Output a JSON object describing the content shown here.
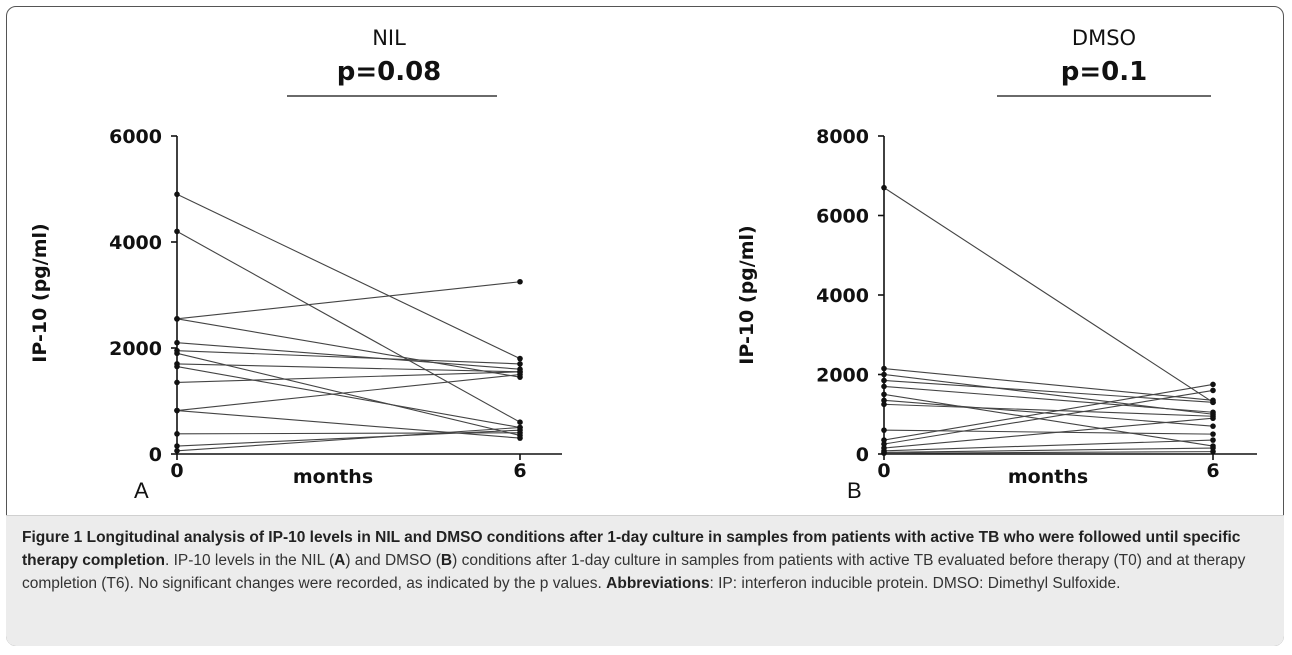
{
  "chart_data": [
    {
      "panel": "A",
      "type": "line",
      "title": "NIL",
      "subtitle": "p=0.08",
      "xlabel": "months",
      "ylabel": "IP-10 (pg/ml)",
      "x": [
        0,
        6
      ],
      "x_ticks": [
        "0",
        "6"
      ],
      "y_ticks": [
        "0",
        "2000",
        "4000",
        "6000"
      ],
      "ylim": [
        0,
        6000
      ],
      "series": [
        {
          "values": [
            4900,
            1800
          ]
        },
        {
          "values": [
            4200,
            600
          ]
        },
        {
          "values": [
            2550,
            3250
          ]
        },
        {
          "values": [
            2550,
            1450
          ]
        },
        {
          "values": [
            2100,
            1600
          ]
        },
        {
          "values": [
            1950,
            1700
          ]
        },
        {
          "values": [
            1900,
            350
          ]
        },
        {
          "values": [
            1700,
            1550
          ]
        },
        {
          "values": [
            1650,
            500
          ]
        },
        {
          "values": [
            1350,
            1550
          ]
        },
        {
          "values": [
            820,
            1500
          ]
        },
        {
          "values": [
            820,
            300
          ]
        },
        {
          "values": [
            380,
            400
          ]
        },
        {
          "values": [
            150,
            450
          ]
        },
        {
          "values": [
            60,
            500
          ]
        }
      ]
    },
    {
      "panel": "B",
      "type": "line",
      "title": "DMSO",
      "subtitle": "p=0.1",
      "xlabel": "months",
      "ylabel": "IP-10 (pg/ml)",
      "x": [
        0,
        6
      ],
      "x_ticks": [
        "0",
        "6"
      ],
      "y_ticks": [
        "0",
        "2000",
        "4000",
        "6000",
        "8000"
      ],
      "ylim": [
        0,
        8000
      ],
      "series": [
        {
          "values": [
            6700,
            1300
          ]
        },
        {
          "values": [
            2150,
            1350
          ]
        },
        {
          "values": [
            2000,
            1000
          ]
        },
        {
          "values": [
            1850,
            1300
          ]
        },
        {
          "values": [
            1700,
            1050
          ]
        },
        {
          "values": [
            1500,
            200
          ]
        },
        {
          "values": [
            1350,
            700
          ]
        },
        {
          "values": [
            1250,
            950
          ]
        },
        {
          "values": [
            600,
            500
          ]
        },
        {
          "values": [
            350,
            1750
          ]
        },
        {
          "values": [
            250,
            1600
          ]
        },
        {
          "values": [
            150,
            900
          ]
        },
        {
          "values": [
            80,
            350
          ]
        },
        {
          "values": [
            40,
            150
          ]
        },
        {
          "values": [
            20,
            60
          ]
        }
      ]
    }
  ],
  "caption": {
    "bold_lead": "Figure 1 Longitudinal analysis of IP-10 levels in NIL and DMSO conditions after 1-day culture in samples from patients with active TB who were followed until specific therapy completion",
    "text_1": ". IP-10 levels in the NIL (",
    "bold_a": "A",
    "text_2": ") and DMSO (",
    "bold_b": "B",
    "text_3": ") conditions after 1-day culture in samples from patients with active TB evaluated before therapy (T0) and at therapy completion (T6). No significant changes were recorded, as indicated by the p values. ",
    "bold_abbrev": "Abbreviations",
    "text_4": ": IP: interferon inducible protein. DMSO: Dimethyl Sulfoxide."
  },
  "colors": {
    "line": "#444444",
    "axis": "#111111",
    "caption_bg": "#ececec"
  }
}
